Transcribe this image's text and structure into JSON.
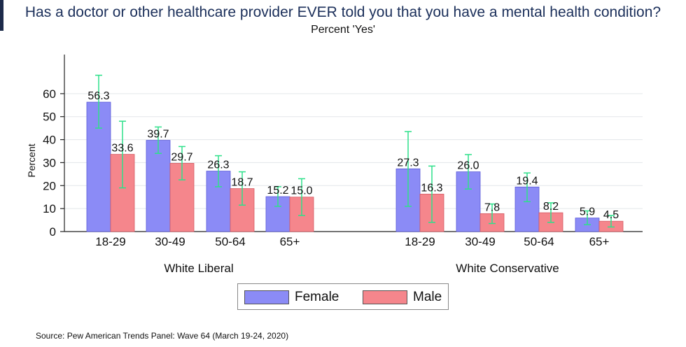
{
  "title": "Has a doctor or other healthcare provider EVER told you that you have a mental health condition?",
  "subtitle": "Percent 'Yes'",
  "source": "Source: Pew American Trends Panel: Wave 64 (March 19-24, 2020)",
  "colors": {
    "female": "#8b8bf6",
    "male": "#f5868c",
    "error_bar": "#2ee08a",
    "title": "#1b2f5a"
  },
  "chart_data": {
    "type": "bar",
    "ylabel": "Percent",
    "ylim": [
      0,
      77
    ],
    "yticks": [
      0,
      10,
      20,
      30,
      40,
      50,
      60
    ],
    "grid": true,
    "legend_position": "bottom",
    "groups": [
      {
        "label": "White Liberal",
        "categories": [
          "18-29",
          "30-49",
          "50-64",
          "65+"
        ],
        "series": [
          {
            "name": "Female",
            "values": [
              56.3,
              39.7,
              26.3,
              15.2
            ],
            "labels": [
              "56.3",
              "39.7",
              "26.3",
              "15.2"
            ],
            "ci_low": [
              45,
              34,
              19.5,
              11
            ],
            "ci_high": [
              68,
              45.5,
              33,
              19.5
            ]
          },
          {
            "name": "Male",
            "values": [
              33.6,
              29.7,
              18.7,
              15.0
            ],
            "labels": [
              "33.6",
              "29.7",
              "18.7",
              "15.0"
            ],
            "ci_low": [
              19,
              22.5,
              11.5,
              7
            ],
            "ci_high": [
              48,
              37,
              26,
              23
            ]
          }
        ]
      },
      {
        "label": "White Conservative",
        "categories": [
          "18-29",
          "30-49",
          "50-64",
          "65+"
        ],
        "series": [
          {
            "name": "Female",
            "values": [
              27.3,
              26.0,
              19.4,
              5.9
            ],
            "labels": [
              "27.3",
              "26.0",
              "19.4",
              "5.9"
            ],
            "ci_low": [
              11,
              18.5,
              13,
              3
            ],
            "ci_high": [
              43.5,
              33.5,
              25.5,
              9
            ]
          },
          {
            "name": "Male",
            "values": [
              16.3,
              7.8,
              8.2,
              4.5
            ],
            "labels": [
              "16.3",
              "7.8",
              "8.2",
              "4.5"
            ],
            "ci_low": [
              4,
              3.5,
              4,
              2
            ],
            "ci_high": [
              28.5,
              12,
              12.5,
              7
            ]
          }
        ]
      }
    ]
  }
}
